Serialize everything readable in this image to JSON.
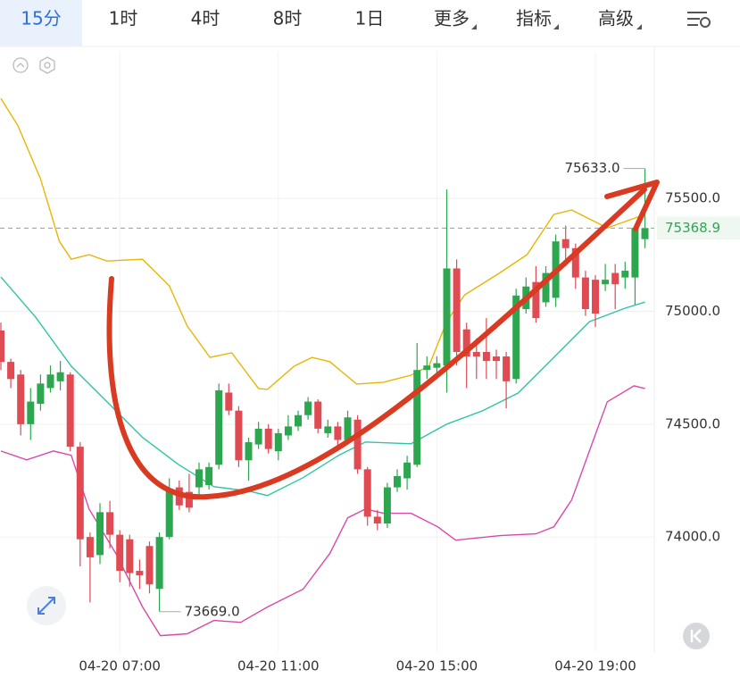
{
  "toolbar": {
    "tabs": [
      "15分",
      "1时",
      "4时",
      "8时",
      "1日",
      "更多",
      "指标",
      "高级"
    ],
    "active": 0
  },
  "chart_data": {
    "type": "candlestick",
    "categories": [
      null,
      null,
      null,
      null,
      null,
      null,
      null,
      null,
      null,
      null,
      null,
      null,
      "04-20 07:00",
      null,
      null,
      null,
      null,
      null,
      null,
      null,
      null,
      null,
      null,
      null,
      null,
      null,
      null,
      null,
      "04-20 11:00",
      null,
      null,
      null,
      null,
      null,
      null,
      null,
      null,
      null,
      null,
      null,
      null,
      null,
      null,
      null,
      "04-20 15:00",
      null,
      null,
      null,
      null,
      null,
      null,
      null,
      null,
      null,
      null,
      null,
      null,
      null,
      null,
      null,
      "04-20 19:00",
      null,
      null,
      null,
      null,
      null
    ],
    "open": [
      74915,
      74776,
      74720,
      74500,
      74590,
      74660,
      74690,
      74720,
      74400,
      74000,
      73920,
      74110,
      74010,
      73990,
      73850,
      73960,
      73770,
      74000,
      74220,
      74200,
      74220,
      74230,
      74320,
      74640,
      74560,
      74340,
      74410,
      74480,
      74380,
      74450,
      74490,
      74540,
      74600,
      74460,
      74490,
      74430,
      74520,
      74300,
      74090,
      74060,
      74220,
      74260,
      74320,
      74740,
      74750,
      74760,
      75190,
      74920,
      74820,
      74820,
      74800,
      74800,
      74700,
      75010,
      75130,
      75040,
      75060,
      75320,
      75280,
      75150,
      75140,
      75120,
      75170,
      75150,
      75150,
      75320
    ],
    "high": [
      74950,
      74790,
      74740,
      74660,
      74720,
      74760,
      74780,
      74730,
      74420,
      74020,
      74150,
      74160,
      74030,
      74010,
      73900,
      73980,
      74020,
      74260,
      74250,
      74280,
      74330,
      74330,
      74680,
      74680,
      74580,
      74440,
      74510,
      74500,
      74480,
      74540,
      74560,
      74620,
      74610,
      74520,
      74510,
      74560,
      74540,
      74310,
      74120,
      74240,
      74300,
      74360,
      74860,
      74800,
      74800,
      75540,
      75230,
      74950,
      74880,
      74970,
      74830,
      74820,
      75100,
      75150,
      75200,
      75200,
      75340,
      75380,
      75300,
      75180,
      75160,
      75210,
      75210,
      75220,
      75380,
      75633
    ],
    "low": [
      74740,
      74660,
      74450,
      74430,
      74560,
      74640,
      74650,
      74380,
      73870,
      73710,
      73880,
      73950,
      73800,
      73780,
      73770,
      73750,
      73669,
      73990,
      74120,
      74110,
      74180,
      74210,
      74300,
      74540,
      74310,
      74250,
      74390,
      74370,
      74340,
      74430,
      74470,
      74520,
      74460,
      74440,
      74400,
      74410,
      74280,
      74050,
      74030,
      74040,
      74200,
      74210,
      74310,
      74700,
      74720,
      74640,
      74760,
      74660,
      74700,
      74700,
      74700,
      74570,
      74680,
      74990,
      74950,
      75020,
      75020,
      75200,
      75100,
      74980,
      74930,
      75090,
      75010,
      75100,
      75030,
      75280
    ],
    "close": [
      74776,
      74700,
      74500,
      74600,
      74680,
      74720,
      74730,
      74400,
      73990,
      73910,
      74110,
      74010,
      73850,
      73840,
      73830,
      73790,
      74000,
      74210,
      74140,
      74130,
      74300,
      74310,
      74650,
      74560,
      74340,
      74420,
      74480,
      74390,
      74460,
      74490,
      74540,
      74600,
      74480,
      74490,
      74430,
      74530,
      74300,
      74090,
      74060,
      74220,
      74270,
      74330,
      74740,
      74760,
      74770,
      75190,
      74820,
      74800,
      74800,
      74780,
      74780,
      74690,
      75070,
      75110,
      74970,
      75170,
      75310,
      75280,
      75150,
      75010,
      74990,
      75140,
      75120,
      75180,
      75370,
      75368.9
    ],
    "up_color": "#2ca74f",
    "down_color": "#e04a52",
    "bands": [
      {
        "color": "#e8b600",
        "x": [
          0,
          1.7,
          4.0,
          5.9,
          7.1,
          8.9,
          10.7,
          14.3,
          17.0,
          18.8,
          21.1,
          23.3,
          26.0,
          26.9,
          29.6,
          31.4,
          33.2,
          35.9,
          38.6,
          41.4,
          43.2,
          45.0,
          46.8,
          50.4,
          53.1,
          55.8,
          57.6,
          61.2,
          65.0
        ],
        "values": [
          75943,
          75824,
          75587,
          75310,
          75231,
          75251,
          75223,
          75231,
          75113,
          74935,
          74796,
          74816,
          74658,
          74654,
          74757,
          74796,
          74777,
          74678,
          74686,
          74717,
          74757,
          74955,
          75073,
          75172,
          75251,
          75429,
          75449,
          75370,
          75429
        ]
      },
      {
        "color": "#2fc4a6",
        "x": [
          0,
          3.5,
          7.1,
          10.7,
          14.3,
          17.9,
          21.5,
          25.1,
          26.9,
          30.5,
          34.1,
          36.8,
          41.4,
          45.0,
          48.6,
          52.2,
          55.8,
          59.4,
          63.0,
          65.0
        ],
        "values": [
          75152,
          74974,
          74757,
          74599,
          74441,
          74322,
          74223,
          74203,
          74184,
          74263,
          74362,
          74421,
          74413,
          74500,
          74559,
          74638,
          74796,
          74954,
          75014,
          75041
        ]
      },
      {
        "color": "#d84aa8",
        "x": [
          0,
          2.6,
          5.3,
          7.1,
          8.9,
          11.6,
          14.3,
          16.1,
          18.8,
          21.5,
          24.2,
          26.9,
          30.5,
          33.2,
          35.0,
          36.8,
          38.6,
          41.4,
          44.1,
          45.9,
          50.4,
          54.0,
          55.8,
          57.6,
          61.2,
          63.9,
          65.0
        ],
        "values": [
          74381,
          74342,
          74381,
          74362,
          74124,
          73927,
          73690,
          73563,
          73571,
          73630,
          73622,
          73690,
          73769,
          73927,
          74085,
          74124,
          74105,
          74105,
          74045,
          73986,
          74006,
          74014,
          74045,
          74164,
          74599,
          74670,
          74658
        ]
      }
    ],
    "annotations": [
      {
        "value": 75633,
        "label": "75633.0"
      },
      {
        "value": 73669,
        "label": "73669.0"
      }
    ],
    "ylim": [
      73490,
      76150
    ],
    "yticks": [
      {
        "value": 74000,
        "label": "74000.0"
      },
      {
        "value": 74500,
        "label": "74500.0"
      },
      {
        "value": 75000,
        "label": "75000.0"
      },
      {
        "value": 75500,
        "label": "75500.0"
      }
    ],
    "grid": true
  }
}
